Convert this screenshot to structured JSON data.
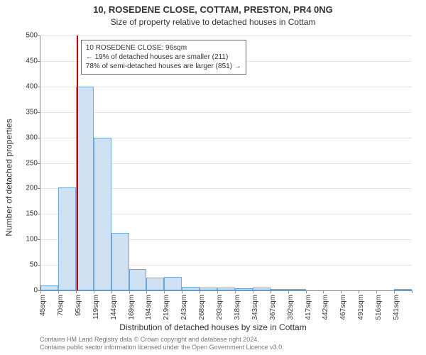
{
  "title_line1": "10, ROSEDENE CLOSE, COTTAM, PRESTON, PR4 0NG",
  "title_line2": "Size of property relative to detached houses in Cottam",
  "ylabel": "Number of detached properties",
  "xlabel": "Distribution of detached houses by size in Cottam",
  "footer_line1": "Contains HM Land Registry data © Crown copyright and database right 2024.",
  "footer_line2": "Contains public sector information licensed under the Open Government Licence v3.0.",
  "chart": {
    "type": "histogram",
    "ylim": [
      0,
      500
    ],
    "ytick_step": 50,
    "grid_color": "#e5e5e5",
    "background_color": "#ffffff",
    "bar_fill": "#cfe2f3",
    "bar_stroke": "#6fa8dc",
    "marker_color": "#cc0000",
    "marker_x": 96,
    "x_start": 45,
    "x_step": 25,
    "x_bins": 21,
    "x_tick_labels": [
      "45sqm",
      "70sqm",
      "95sqm",
      "119sqm",
      "144sqm",
      "169sqm",
      "194sqm",
      "219sqm",
      "243sqm",
      "268sqm",
      "293sqm",
      "318sqm",
      "343sqm",
      "367sqm",
      "392sqm",
      "417sqm",
      "442sqm",
      "467sqm",
      "491sqm",
      "516sqm",
      "541sqm"
    ],
    "values": [
      10,
      202,
      400,
      300,
      113,
      42,
      25,
      27,
      7,
      6,
      5,
      4,
      5,
      2,
      1,
      0,
      0,
      0,
      0,
      0,
      1
    ]
  },
  "annotation": {
    "border_color": "#666666",
    "bg_color": "#ffffff",
    "line1": "10 ROSEDENE CLOSE: 96sqm",
    "line2": "← 19% of detached houses are smaller (211)",
    "line3": "78% of semi-detached houses are larger (851) →"
  },
  "title_fontsize": 13,
  "subtitle_fontsize": 12,
  "label_fontsize": 12,
  "tick_fontsize": 10,
  "annotation_fontsize": 10,
  "footer_fontsize": 9
}
